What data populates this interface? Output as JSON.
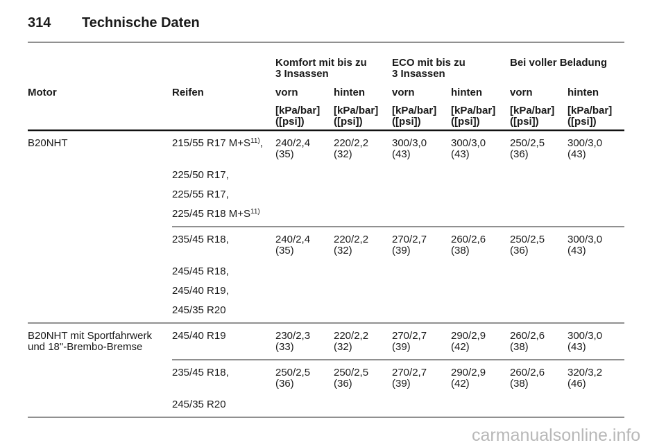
{
  "header": {
    "page_number": "314",
    "title": "Technische Daten"
  },
  "table": {
    "group_headers": [
      [
        "Komfort mit bis zu",
        "3 Insassen"
      ],
      [
        "ECO mit bis zu",
        "3 Insassen"
      ],
      [
        "Bei voller Beladung"
      ]
    ],
    "columns": [
      "Motor",
      "Reifen",
      "vorn",
      "hinten",
      "vorn",
      "hinten",
      "vorn",
      "hinten"
    ],
    "units": [
      [
        "[kPa/bar]",
        "([psi])"
      ],
      [
        "[kPa/bar]",
        "([psi])"
      ],
      [
        "[kPa/bar]",
        "([psi])"
      ],
      [
        "[kPa/bar]",
        "([psi])"
      ],
      [
        "[kPa/bar]",
        "([psi])"
      ],
      [
        "[kPa/bar]",
        "([psi])"
      ]
    ],
    "rows": [
      {
        "motor": [
          "B20NHT"
        ],
        "sets": [
          {
            "tires": [
              {
                "text": "215/55 R17 M+S",
                "note": "11)",
                "after": ","
              },
              {
                "text": "225/50 R17,"
              },
              {
                "text": "225/55 R17,"
              },
              {
                "text": "225/45 R18 M+S",
                "note": "11)"
              }
            ],
            "values": [
              [
                "240/2,4",
                "(35)"
              ],
              [
                "220/2,2",
                "(32)"
              ],
              [
                "300/3,0",
                "(43)"
              ],
              [
                "300/3,0",
                "(43)"
              ],
              [
                "250/2,5",
                "(36)"
              ],
              [
                "300/3,0",
                "(43)"
              ]
            ]
          },
          {
            "tires": [
              {
                "text": "235/45 R18,"
              },
              {
                "text": "245/45 R18,"
              },
              {
                "text": "245/40 R19,"
              },
              {
                "text": "245/35 R20"
              }
            ],
            "values": [
              [
                "240/2,4",
                "(35)"
              ],
              [
                "220/2,2",
                "(32)"
              ],
              [
                "270/2,7",
                "(39)"
              ],
              [
                "260/2,6",
                "(38)"
              ],
              [
                "250/2,5",
                "(36)"
              ],
              [
                "300/3,0",
                "(43)"
              ]
            ]
          }
        ]
      },
      {
        "motor": [
          "B20NHT mit Sportfahrwerk",
          "und 18\"-Brembo-Bremse"
        ],
        "sets": [
          {
            "tires": [
              {
                "text": "245/40 R19"
              }
            ],
            "values": [
              [
                "230/2,3",
                "(33)"
              ],
              [
                "220/2,2",
                "(32)"
              ],
              [
                "270/2,7",
                "(39)"
              ],
              [
                "290/2,9",
                "(42)"
              ],
              [
                "260/2,6",
                "(38)"
              ],
              [
                "300/3,0",
                "(43)"
              ]
            ]
          },
          {
            "tires": [
              {
                "text": "235/45 R18,"
              },
              {
                "text": "245/35 R20"
              }
            ],
            "values": [
              [
                "250/2,5",
                "(36)"
              ],
              [
                "250/2,5",
                "(36)"
              ],
              [
                "270/2,7",
                "(39)"
              ],
              [
                "290/2,9",
                "(42)"
              ],
              [
                "260/2,6",
                "(38)"
              ],
              [
                "320/3,2",
                "(46)"
              ]
            ]
          }
        ]
      }
    ]
  },
  "watermark": "carmanualsonline.info"
}
